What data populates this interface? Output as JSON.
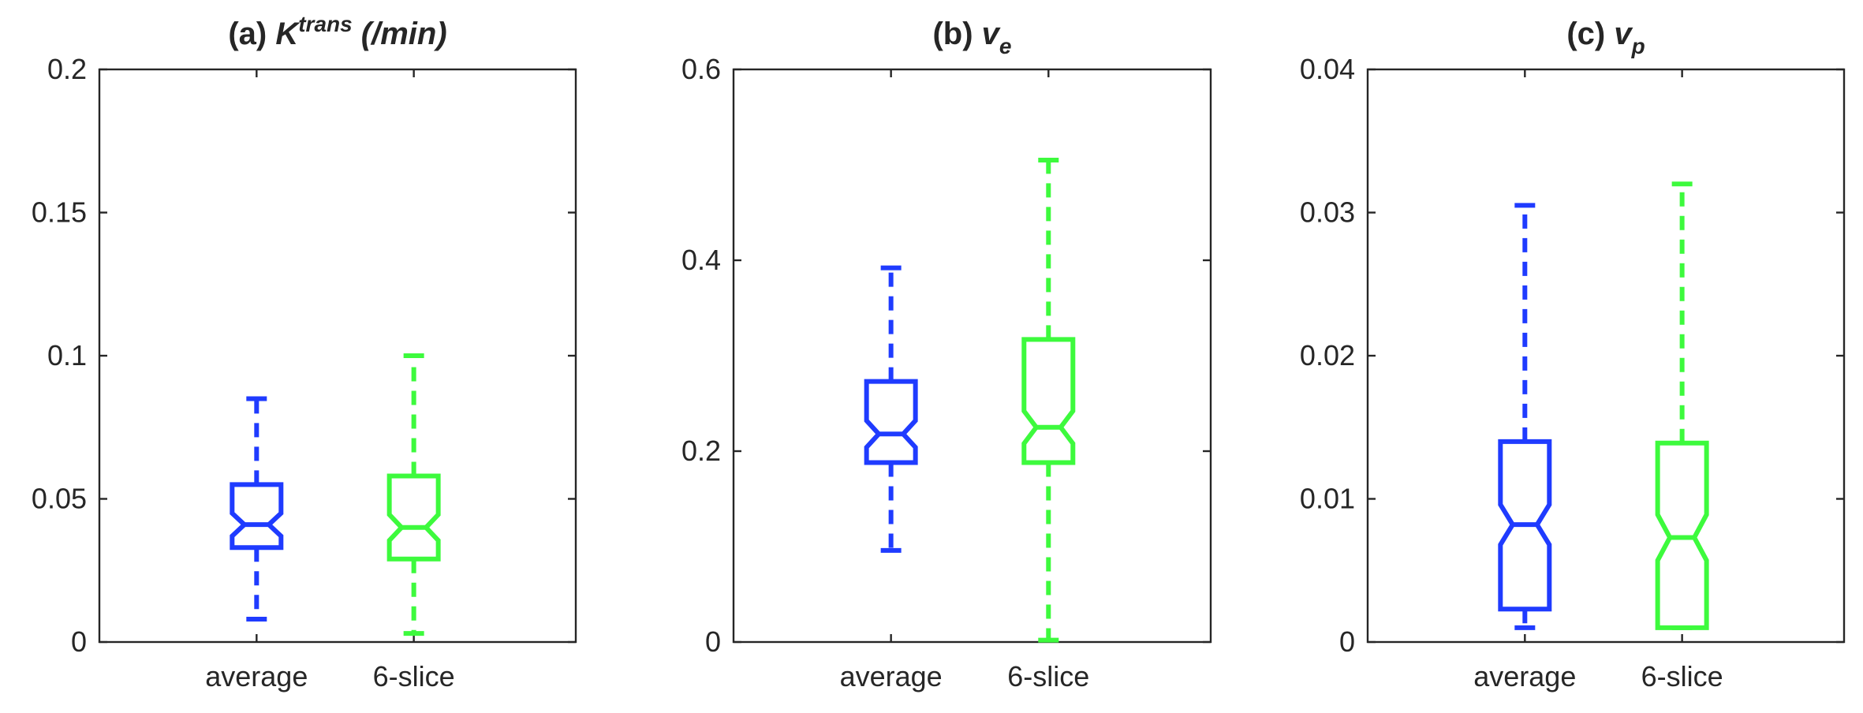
{
  "chart_data": [
    {
      "type": "boxplot",
      "notched": true,
      "title": {
        "prefix": "(a) ",
        "main": "K",
        "sup": "trans",
        "suffix": " (/min)"
      },
      "categories": [
        "average",
        "6-slice"
      ],
      "ylim": [
        0,
        0.2
      ],
      "yticks": [
        0,
        0.05,
        0.1,
        0.15,
        0.2
      ],
      "ytick_labels": [
        "0",
        "0.05",
        "0.1",
        "0.15",
        "0.2"
      ],
      "series": [
        {
          "category": "average",
          "color": "#1f3bff",
          "whisker_low": 0.008,
          "q1": 0.033,
          "median": 0.041,
          "q3": 0.055,
          "whisker_high": 0.085,
          "notch_low": 0.037,
          "notch_high": 0.045
        },
        {
          "category": "6-slice",
          "color": "#3dfa3d",
          "whisker_low": 0.003,
          "q1": 0.029,
          "median": 0.04,
          "q3": 0.058,
          "whisker_high": 0.1,
          "notch_low": 0.0355,
          "notch_high": 0.0445
        }
      ]
    },
    {
      "type": "boxplot",
      "notched": true,
      "title": {
        "prefix": "(b) ",
        "main": "v",
        "sub": "e"
      },
      "categories": [
        "average",
        "6-slice"
      ],
      "ylim": [
        0,
        0.6
      ],
      "yticks": [
        0,
        0.2,
        0.4,
        0.6
      ],
      "ytick_labels": [
        "0",
        "0.2",
        "0.4",
        "0.6"
      ],
      "series": [
        {
          "category": "average",
          "color": "#1f3bff",
          "whisker_low": 0.096,
          "q1": 0.188,
          "median": 0.218,
          "q3": 0.273,
          "whisker_high": 0.392,
          "notch_low": 0.204,
          "notch_high": 0.232
        },
        {
          "category": "6-slice",
          "color": "#3dfa3d",
          "whisker_low": 0.002,
          "q1": 0.188,
          "median": 0.225,
          "q3": 0.317,
          "whisker_high": 0.505,
          "notch_low": 0.208,
          "notch_high": 0.242
        }
      ]
    },
    {
      "type": "boxplot",
      "notched": true,
      "title": {
        "prefix": "(c) ",
        "main": "v",
        "sub": "p"
      },
      "categories": [
        "average",
        "6-slice"
      ],
      "ylim": [
        0,
        0.04
      ],
      "yticks": [
        0,
        0.01,
        0.02,
        0.03,
        0.04
      ],
      "ytick_labels": [
        "0",
        "0.01",
        "0.02",
        "0.03",
        "0.04"
      ],
      "series": [
        {
          "category": "average",
          "color": "#1f3bff",
          "whisker_low": 0.001,
          "q1": 0.0023,
          "median": 0.0082,
          "q3": 0.014,
          "whisker_high": 0.0305,
          "notch_low": 0.0068,
          "notch_high": 0.0096
        },
        {
          "category": "6-slice",
          "color": "#3dfa3d",
          "whisker_low": 0.001,
          "q1": 0.001,
          "median": 0.0073,
          "q3": 0.0139,
          "whisker_high": 0.032,
          "notch_low": 0.0057,
          "notch_high": 0.0089
        }
      ]
    }
  ]
}
